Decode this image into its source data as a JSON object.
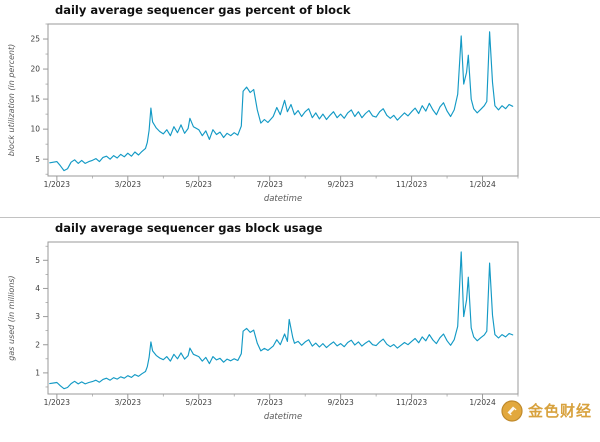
{
  "style": {
    "line_color": "#149ac5",
    "axis_color": "#9a9a9a",
    "tick_label_color": "#3d3d3d",
    "axis_label_color": "#5a5a5a",
    "title_color": "#101010",
    "gold": "#d8a23e"
  },
  "watermark": {
    "text": "金色财经",
    "icon": "coin-icon"
  },
  "chart_data": [
    {
      "type": "line",
      "title": "daily average sequencer gas percent of block",
      "xlabel": "datetime",
      "ylabel": "block utilization (in percent)",
      "legend": "none",
      "grid": false,
      "x_unit": "months since 2023-01-01",
      "x_range": [
        -0.25,
        13.0
      ],
      "y_range": [
        2.2,
        27.5
      ],
      "x_ticks": [
        0,
        2,
        4,
        6,
        8,
        10,
        12
      ],
      "x_tick_labels": [
        "1/2023",
        "3/2023",
        "5/2023",
        "7/2023",
        "9/2023",
        "11/2023",
        "1/2024"
      ],
      "y_ticks": [
        5,
        10,
        15,
        20,
        25
      ],
      "y_minor_step": 2.5,
      "points": [
        [
          -0.2,
          4.4
        ],
        [
          0,
          4.6
        ],
        [
          0.1,
          3.9
        ],
        [
          0.2,
          3.1
        ],
        [
          0.3,
          3.4
        ],
        [
          0.4,
          4.5
        ],
        [
          0.5,
          4.9
        ],
        [
          0.6,
          4.3
        ],
        [
          0.7,
          4.8
        ],
        [
          0.8,
          4.3
        ],
        [
          0.9,
          4.6
        ],
        [
          1.0,
          4.8
        ],
        [
          1.1,
          5.1
        ],
        [
          1.2,
          4.6
        ],
        [
          1.3,
          5.3
        ],
        [
          1.4,
          5.5
        ],
        [
          1.5,
          5.0
        ],
        [
          1.6,
          5.6
        ],
        [
          1.7,
          5.2
        ],
        [
          1.8,
          5.8
        ],
        [
          1.9,
          5.4
        ],
        [
          2.0,
          6.0
        ],
        [
          2.1,
          5.5
        ],
        [
          2.2,
          6.2
        ],
        [
          2.3,
          5.7
        ],
        [
          2.4,
          6.3
        ],
        [
          2.5,
          6.8
        ],
        [
          2.55,
          7.8
        ],
        [
          2.6,
          9.8
        ],
        [
          2.65,
          13.5
        ],
        [
          2.7,
          11.2
        ],
        [
          2.8,
          10.2
        ],
        [
          2.9,
          9.6
        ],
        [
          3.0,
          9.2
        ],
        [
          3.1,
          9.9
        ],
        [
          3.2,
          8.9
        ],
        [
          3.3,
          10.4
        ],
        [
          3.4,
          9.4
        ],
        [
          3.5,
          10.7
        ],
        [
          3.6,
          9.3
        ],
        [
          3.7,
          10.1
        ],
        [
          3.75,
          11.8
        ],
        [
          3.85,
          10.4
        ],
        [
          4.0,
          9.9
        ],
        [
          4.1,
          8.9
        ],
        [
          4.2,
          9.7
        ],
        [
          4.3,
          8.3
        ],
        [
          4.4,
          9.9
        ],
        [
          4.5,
          9.1
        ],
        [
          4.6,
          9.5
        ],
        [
          4.7,
          8.6
        ],
        [
          4.8,
          9.3
        ],
        [
          4.9,
          8.9
        ],
        [
          5.0,
          9.4
        ],
        [
          5.1,
          9.0
        ],
        [
          5.2,
          10.5
        ],
        [
          5.25,
          16.3
        ],
        [
          5.35,
          17.0
        ],
        [
          5.45,
          16.1
        ],
        [
          5.55,
          16.6
        ],
        [
          5.65,
          13.2
        ],
        [
          5.75,
          11.0
        ],
        [
          5.85,
          11.6
        ],
        [
          5.95,
          11.1
        ],
        [
          6.1,
          12.1
        ],
        [
          6.2,
          13.6
        ],
        [
          6.3,
          12.4
        ],
        [
          6.42,
          14.8
        ],
        [
          6.5,
          12.9
        ],
        [
          6.6,
          14.1
        ],
        [
          6.7,
          12.4
        ],
        [
          6.8,
          13.1
        ],
        [
          6.9,
          12.1
        ],
        [
          7.0,
          12.9
        ],
        [
          7.1,
          13.4
        ],
        [
          7.2,
          11.9
        ],
        [
          7.3,
          12.7
        ],
        [
          7.4,
          11.7
        ],
        [
          7.5,
          12.5
        ],
        [
          7.6,
          11.6
        ],
        [
          7.7,
          12.3
        ],
        [
          7.8,
          12.9
        ],
        [
          7.9,
          11.9
        ],
        [
          8.0,
          12.5
        ],
        [
          8.1,
          11.8
        ],
        [
          8.2,
          12.7
        ],
        [
          8.3,
          13.2
        ],
        [
          8.4,
          12.1
        ],
        [
          8.5,
          12.9
        ],
        [
          8.6,
          11.9
        ],
        [
          8.7,
          12.6
        ],
        [
          8.8,
          13.1
        ],
        [
          8.9,
          12.2
        ],
        [
          9.0,
          12.0
        ],
        [
          9.1,
          12.9
        ],
        [
          9.2,
          13.4
        ],
        [
          9.3,
          12.3
        ],
        [
          9.4,
          11.8
        ],
        [
          9.5,
          12.3
        ],
        [
          9.6,
          11.5
        ],
        [
          9.7,
          12.1
        ],
        [
          9.8,
          12.7
        ],
        [
          9.9,
          12.2
        ],
        [
          10.0,
          12.9
        ],
        [
          10.1,
          13.5
        ],
        [
          10.2,
          12.6
        ],
        [
          10.3,
          13.9
        ],
        [
          10.4,
          13.0
        ],
        [
          10.5,
          14.3
        ],
        [
          10.6,
          13.2
        ],
        [
          10.7,
          12.4
        ],
        [
          10.8,
          13.7
        ],
        [
          10.9,
          14.4
        ],
        [
          11.0,
          13.0
        ],
        [
          11.1,
          12.1
        ],
        [
          11.2,
          13.2
        ],
        [
          11.3,
          15.8
        ],
        [
          11.4,
          25.5
        ],
        [
          11.47,
          17.5
        ],
        [
          11.55,
          19.5
        ],
        [
          11.6,
          22.3
        ],
        [
          11.68,
          15.0
        ],
        [
          11.75,
          13.4
        ],
        [
          11.85,
          12.7
        ],
        [
          11.95,
          13.3
        ],
        [
          12.05,
          13.9
        ],
        [
          12.12,
          14.6
        ],
        [
          12.2,
          26.2
        ],
        [
          12.28,
          17.8
        ],
        [
          12.35,
          13.9
        ],
        [
          12.45,
          13.2
        ],
        [
          12.55,
          13.9
        ],
        [
          12.65,
          13.4
        ],
        [
          12.75,
          14.1
        ],
        [
          12.85,
          13.8
        ]
      ]
    },
    {
      "type": "line",
      "title": "daily average sequencer gas block usage",
      "xlabel": "datetime",
      "ylabel": "gas used (in millions)",
      "legend": "none",
      "grid": false,
      "x_unit": "months since 2023-01-01",
      "x_range": [
        -0.25,
        13.0
      ],
      "y_range": [
        0.25,
        5.65
      ],
      "x_ticks": [
        0,
        2,
        4,
        6,
        8,
        10,
        12
      ],
      "x_tick_labels": [
        "1/2023",
        "3/2023",
        "5/2023",
        "7/2023",
        "9/2023",
        "11/2023",
        "1/2024"
      ],
      "y_ticks": [
        1,
        2,
        3,
        4,
        5
      ],
      "y_minor_step": 0.5,
      "points": [
        [
          -0.2,
          0.62
        ],
        [
          0,
          0.66
        ],
        [
          0.1,
          0.54
        ],
        [
          0.2,
          0.44
        ],
        [
          0.3,
          0.48
        ],
        [
          0.4,
          0.62
        ],
        [
          0.5,
          0.7
        ],
        [
          0.6,
          0.61
        ],
        [
          0.7,
          0.68
        ],
        [
          0.8,
          0.61
        ],
        [
          0.9,
          0.66
        ],
        [
          1.0,
          0.69
        ],
        [
          1.1,
          0.74
        ],
        [
          1.2,
          0.67
        ],
        [
          1.3,
          0.77
        ],
        [
          1.4,
          0.81
        ],
        [
          1.5,
          0.74
        ],
        [
          1.6,
          0.83
        ],
        [
          1.7,
          0.78
        ],
        [
          1.8,
          0.86
        ],
        [
          1.9,
          0.81
        ],
        [
          2.0,
          0.9
        ],
        [
          2.1,
          0.84
        ],
        [
          2.2,
          0.94
        ],
        [
          2.3,
          0.88
        ],
        [
          2.4,
          0.97
        ],
        [
          2.5,
          1.05
        ],
        [
          2.55,
          1.22
        ],
        [
          2.6,
          1.55
        ],
        [
          2.65,
          2.1
        ],
        [
          2.7,
          1.78
        ],
        [
          2.8,
          1.62
        ],
        [
          2.9,
          1.53
        ],
        [
          3.0,
          1.47
        ],
        [
          3.1,
          1.58
        ],
        [
          3.2,
          1.42
        ],
        [
          3.3,
          1.66
        ],
        [
          3.4,
          1.5
        ],
        [
          3.5,
          1.71
        ],
        [
          3.6,
          1.49
        ],
        [
          3.7,
          1.61
        ],
        [
          3.75,
          1.88
        ],
        [
          3.85,
          1.66
        ],
        [
          4.0,
          1.58
        ],
        [
          4.1,
          1.42
        ],
        [
          4.2,
          1.55
        ],
        [
          4.3,
          1.33
        ],
        [
          4.4,
          1.58
        ],
        [
          4.5,
          1.46
        ],
        [
          4.6,
          1.52
        ],
        [
          4.7,
          1.38
        ],
        [
          4.8,
          1.49
        ],
        [
          4.9,
          1.43
        ],
        [
          5.0,
          1.5
        ],
        [
          5.1,
          1.44
        ],
        [
          5.2,
          1.68
        ],
        [
          5.25,
          2.48
        ],
        [
          5.35,
          2.58
        ],
        [
          5.45,
          2.44
        ],
        [
          5.55,
          2.52
        ],
        [
          5.65,
          2.05
        ],
        [
          5.75,
          1.78
        ],
        [
          5.85,
          1.87
        ],
        [
          5.95,
          1.8
        ],
        [
          6.1,
          1.95
        ],
        [
          6.2,
          2.18
        ],
        [
          6.3,
          2.0
        ],
        [
          6.42,
          2.38
        ],
        [
          6.5,
          2.12
        ],
        [
          6.55,
          2.9
        ],
        [
          6.65,
          2.25
        ],
        [
          6.7,
          2.05
        ],
        [
          6.8,
          2.12
        ],
        [
          6.9,
          1.98
        ],
        [
          7.0,
          2.1
        ],
        [
          7.1,
          2.18
        ],
        [
          7.2,
          1.95
        ],
        [
          7.3,
          2.06
        ],
        [
          7.4,
          1.92
        ],
        [
          7.5,
          2.04
        ],
        [
          7.6,
          1.9
        ],
        [
          7.7,
          2.01
        ],
        [
          7.8,
          2.1
        ],
        [
          7.9,
          1.96
        ],
        [
          8.0,
          2.04
        ],
        [
          8.1,
          1.93
        ],
        [
          8.2,
          2.08
        ],
        [
          8.3,
          2.16
        ],
        [
          8.4,
          1.99
        ],
        [
          8.5,
          2.1
        ],
        [
          8.6,
          1.95
        ],
        [
          8.7,
          2.06
        ],
        [
          8.8,
          2.14
        ],
        [
          8.9,
          2.0
        ],
        [
          9.0,
          1.97
        ],
        [
          9.1,
          2.1
        ],
        [
          9.2,
          2.2
        ],
        [
          9.3,
          2.02
        ],
        [
          9.4,
          1.93
        ],
        [
          9.5,
          2.01
        ],
        [
          9.6,
          1.88
        ],
        [
          9.7,
          1.98
        ],
        [
          9.8,
          2.08
        ],
        [
          9.9,
          2.0
        ],
        [
          10.0,
          2.12
        ],
        [
          10.1,
          2.22
        ],
        [
          10.2,
          2.07
        ],
        [
          10.3,
          2.28
        ],
        [
          10.4,
          2.14
        ],
        [
          10.5,
          2.36
        ],
        [
          10.6,
          2.17
        ],
        [
          10.7,
          2.04
        ],
        [
          10.8,
          2.25
        ],
        [
          10.9,
          2.38
        ],
        [
          11.0,
          2.14
        ],
        [
          11.1,
          1.98
        ],
        [
          11.2,
          2.18
        ],
        [
          11.3,
          2.65
        ],
        [
          11.4,
          5.3
        ],
        [
          11.47,
          3.0
        ],
        [
          11.55,
          3.6
        ],
        [
          11.6,
          4.4
        ],
        [
          11.68,
          2.6
        ],
        [
          11.75,
          2.28
        ],
        [
          11.85,
          2.14
        ],
        [
          11.95,
          2.25
        ],
        [
          12.05,
          2.35
        ],
        [
          12.12,
          2.48
        ],
        [
          12.2,
          4.9
        ],
        [
          12.28,
          3.05
        ],
        [
          12.35,
          2.36
        ],
        [
          12.45,
          2.24
        ],
        [
          12.55,
          2.36
        ],
        [
          12.65,
          2.28
        ],
        [
          12.75,
          2.4
        ],
        [
          12.85,
          2.35
        ]
      ]
    }
  ]
}
